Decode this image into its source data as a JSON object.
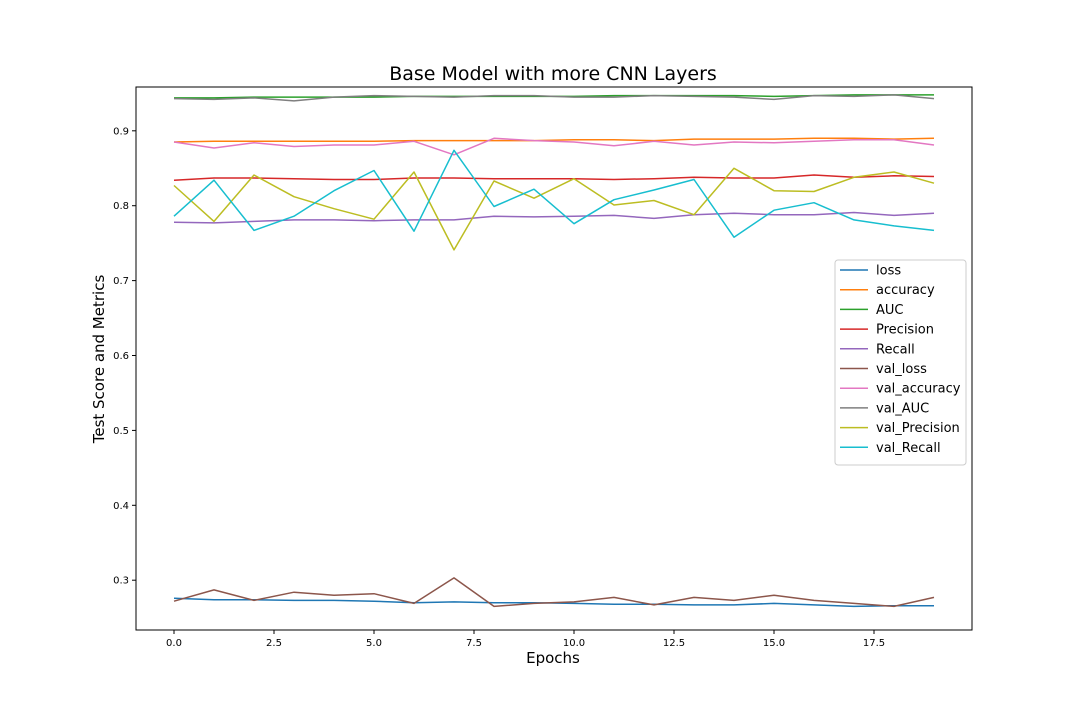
{
  "chart_data": {
    "type": "line",
    "title": "Base Model with more CNN Layers",
    "xlabel": "Epochs",
    "ylabel": "Test Score and Metrics",
    "xlim": [
      -0.95,
      19.95
    ],
    "ylim": [
      0.2335,
      0.9585
    ],
    "x_ticks": [
      0.0,
      2.5,
      5.0,
      7.5,
      10.0,
      12.5,
      15.0,
      17.5
    ],
    "x_tick_labels": [
      "0.0",
      "2.5",
      "5.0",
      "7.5",
      "10.0",
      "12.5",
      "15.0",
      "17.5"
    ],
    "y_ticks": [
      0.3,
      0.4,
      0.5,
      0.6,
      0.7,
      0.8,
      0.9
    ],
    "y_tick_labels": [
      "0.3",
      "0.4",
      "0.5",
      "0.6",
      "0.7",
      "0.8",
      "0.9"
    ],
    "grid": false,
    "legend_position": "center-right",
    "x": [
      0,
      1,
      2,
      3,
      4,
      5,
      6,
      7,
      8,
      9,
      10,
      11,
      12,
      13,
      14,
      15,
      16,
      17,
      18,
      19
    ],
    "series": [
      {
        "name": "loss",
        "color": "#1f77b4",
        "values": [
          0.276,
          0.274,
          0.274,
          0.273,
          0.273,
          0.272,
          0.27,
          0.271,
          0.27,
          0.27,
          0.269,
          0.268,
          0.268,
          0.267,
          0.267,
          0.269,
          0.267,
          0.265,
          0.266,
          0.266
        ]
      },
      {
        "name": "accuracy",
        "color": "#ff7f0e",
        "values": [
          0.885,
          0.886,
          0.886,
          0.886,
          0.886,
          0.886,
          0.887,
          0.887,
          0.887,
          0.887,
          0.888,
          0.888,
          0.887,
          0.889,
          0.889,
          0.889,
          0.89,
          0.89,
          0.889,
          0.89
        ]
      },
      {
        "name": "AUC",
        "color": "#2ca02c",
        "values": [
          0.944,
          0.944,
          0.945,
          0.945,
          0.945,
          0.945,
          0.946,
          0.946,
          0.946,
          0.946,
          0.946,
          0.947,
          0.947,
          0.947,
          0.947,
          0.946,
          0.947,
          0.948,
          0.948,
          0.948
        ]
      },
      {
        "name": "Precision",
        "color": "#d62728",
        "values": [
          0.834,
          0.837,
          0.837,
          0.836,
          0.835,
          0.835,
          0.837,
          0.837,
          0.836,
          0.836,
          0.836,
          0.835,
          0.836,
          0.838,
          0.837,
          0.837,
          0.841,
          0.838,
          0.84,
          0.839
        ]
      },
      {
        "name": "Recall",
        "color": "#9467bd",
        "values": [
          0.778,
          0.777,
          0.779,
          0.781,
          0.781,
          0.78,
          0.781,
          0.781,
          0.786,
          0.785,
          0.786,
          0.787,
          0.783,
          0.788,
          0.79,
          0.788,
          0.788,
          0.791,
          0.787,
          0.79
        ]
      },
      {
        "name": "val_loss",
        "color": "#8c564b",
        "values": [
          0.272,
          0.287,
          0.273,
          0.284,
          0.28,
          0.282,
          0.269,
          0.303,
          0.265,
          0.269,
          0.271,
          0.277,
          0.267,
          0.277,
          0.273,
          0.28,
          0.273,
          0.269,
          0.265,
          0.277
        ]
      },
      {
        "name": "val_accuracy",
        "color": "#e377c2",
        "values": [
          0.885,
          0.877,
          0.884,
          0.879,
          0.881,
          0.881,
          0.886,
          0.868,
          0.89,
          0.887,
          0.885,
          0.88,
          0.886,
          0.881,
          0.885,
          0.884,
          0.886,
          0.888,
          0.888,
          0.881
        ]
      },
      {
        "name": "val_AUC",
        "color": "#7f7f7f",
        "values": [
          0.943,
          0.942,
          0.944,
          0.94,
          0.945,
          0.947,
          0.946,
          0.945,
          0.947,
          0.947,
          0.945,
          0.945,
          0.947,
          0.946,
          0.945,
          0.942,
          0.947,
          0.946,
          0.948,
          0.943
        ]
      },
      {
        "name": "val_Precision",
        "color": "#bcbd22",
        "values": [
          0.827,
          0.779,
          0.841,
          0.812,
          0.796,
          0.782,
          0.845,
          0.741,
          0.833,
          0.81,
          0.836,
          0.801,
          0.807,
          0.788,
          0.85,
          0.82,
          0.819,
          0.838,
          0.845,
          0.83
        ]
      },
      {
        "name": "val_Recall",
        "color": "#17becf",
        "values": [
          0.786,
          0.834,
          0.767,
          0.786,
          0.82,
          0.847,
          0.766,
          0.874,
          0.799,
          0.822,
          0.776,
          0.808,
          0.821,
          0.835,
          0.758,
          0.794,
          0.804,
          0.781,
          0.773,
          0.767
        ]
      }
    ]
  }
}
